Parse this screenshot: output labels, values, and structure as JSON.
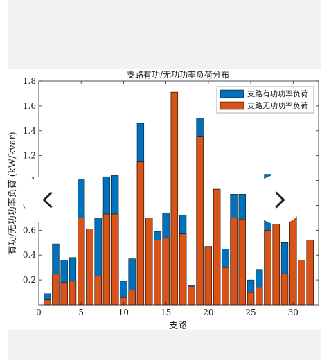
{
  "chart_data": {
    "type": "bar",
    "stacking": "overlay",
    "title": "支路有功/无功功率负荷分布",
    "xlabel": "支路",
    "ylabel": "有功/无功功率负荷 (kW/kvar)",
    "xlim": [
      0,
      33
    ],
    "ylim": [
      0,
      1.8
    ],
    "x_ticks": [
      0,
      5,
      10,
      15,
      20,
      25,
      30
    ],
    "y_ticks": [
      0.2,
      0.4,
      0.6,
      0.8,
      1,
      1.2,
      1.4,
      1.6,
      1.8
    ],
    "y_tick_labels": [
      "0.2",
      "0.4",
      "0.6",
      "0.8",
      "1",
      "1.2",
      "1.4",
      "1.6",
      "1.8"
    ],
    "categories": [
      1,
      2,
      3,
      4,
      5,
      6,
      7,
      8,
      9,
      10,
      11,
      12,
      13,
      14,
      15,
      16,
      17,
      18,
      19,
      20,
      21,
      22,
      23,
      24,
      25,
      26,
      27,
      28,
      29,
      30,
      31,
      32
    ],
    "grid": false,
    "legend_position": "top-right",
    "series": [
      {
        "name": "支路有功功率负荷",
        "color": "#0072bd",
        "values": [
          0.09,
          0.49,
          0.36,
          0.38,
          1.01,
          0.61,
          0.7,
          1.03,
          1.04,
          0.19,
          0.37,
          1.46,
          0.7,
          0.59,
          0.74,
          1.71,
          0.72,
          0.16,
          1.5,
          0.47,
          0.93,
          0.45,
          0.89,
          0.89,
          0.2,
          0.28,
          1.05,
          0.82,
          0.5,
          0.78,
          0.36,
          0.52
        ]
      },
      {
        "name": "支路无功功率负荷",
        "color": "#d95319",
        "values": [
          0.04,
          0.25,
          0.18,
          0.19,
          0.7,
          0.61,
          0.23,
          0.73,
          0.73,
          0.06,
          0.12,
          1.15,
          0.7,
          0.52,
          0.54,
          1.71,
          0.57,
          0.15,
          1.35,
          0.47,
          0.93,
          0.3,
          0.7,
          0.69,
          0.1,
          0.14,
          0.6,
          0.65,
          0.25,
          0.73,
          0.36,
          0.52
        ]
      }
    ]
  }
}
